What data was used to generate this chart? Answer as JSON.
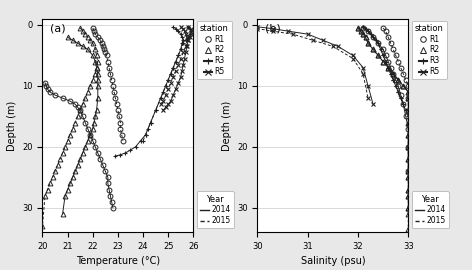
{
  "title_a": "(a)",
  "title_b": "(b)",
  "xlabel_a": "Temperature (°C)",
  "xlabel_b": "Salinity (psu)",
  "ylabel": "Depth (m)",
  "xlim_a": [
    20,
    26
  ],
  "xlim_b": [
    30,
    33
  ],
  "ylim": [
    34,
    -1
  ],
  "xticks_a": [
    20,
    21,
    22,
    23,
    24,
    25,
    26
  ],
  "xticks_b": [
    30,
    31,
    32,
    33
  ],
  "yticks": [
    0,
    10,
    20,
    30
  ],
  "background_color": "#e8e8e8",
  "panel_color": "#ffffff",
  "temp_R1_2014": {
    "x": [
      20.1,
      20.15,
      20.2,
      20.3,
      20.5,
      20.8,
      21.1,
      21.3,
      21.4,
      21.5,
      21.6,
      21.7,
      21.8,
      21.9,
      22.0,
      22.1,
      22.2,
      22.3,
      22.4,
      22.5,
      22.6,
      22.6,
      22.65,
      22.7,
      22.75,
      22.8
    ],
    "y": [
      9.5,
      10.0,
      10.5,
      11.0,
      11.5,
      12.0,
      12.5,
      13.0,
      13.5,
      14.0,
      15.0,
      16.0,
      17.0,
      18.0,
      19.0,
      20.0,
      21.0,
      22.0,
      23.0,
      24.0,
      25.0,
      26.0,
      27.0,
      28.0,
      29.0,
      30.0
    ]
  },
  "temp_R1_2015": {
    "x": [
      22.0,
      22.05,
      22.1,
      22.2,
      22.3,
      22.35,
      22.4,
      22.45,
      22.5,
      22.55,
      22.6,
      22.65,
      22.7,
      22.75,
      22.8,
      22.85,
      22.9,
      22.95,
      23.0,
      23.05,
      23.1,
      23.1,
      23.15,
      23.2
    ],
    "y": [
      0.5,
      1.0,
      1.5,
      2.0,
      2.5,
      3.0,
      3.5,
      4.0,
      4.5,
      5.0,
      6.0,
      7.0,
      8.0,
      9.0,
      10.0,
      11.0,
      12.0,
      13.0,
      14.0,
      15.0,
      16.0,
      17.0,
      18.0,
      19.0
    ]
  },
  "temp_R2_2014": {
    "x": [
      21.0,
      21.2,
      21.4,
      21.6,
      21.8,
      22.0,
      22.1,
      22.15,
      22.2,
      22.2,
      22.2,
      22.2,
      22.15,
      22.1,
      22.05,
      22.0,
      21.9,
      21.8,
      21.7,
      21.6,
      21.5,
      21.4,
      21.3,
      21.2,
      21.1,
      21.0,
      20.9,
      20.8
    ],
    "y": [
      2.0,
      2.5,
      3.0,
      3.5,
      4.0,
      5.0,
      6.0,
      7.0,
      8.0,
      9.0,
      10.0,
      12.0,
      14.0,
      15.0,
      16.0,
      17.0,
      18.0,
      19.0,
      20.0,
      21.0,
      22.0,
      23.0,
      24.0,
      25.0,
      26.0,
      27.0,
      28.0,
      31.0
    ]
  },
  "temp_R2_2015": {
    "x": [
      21.5,
      21.6,
      21.7,
      21.8,
      21.9,
      22.0,
      22.1,
      22.15,
      22.2,
      22.15,
      22.1,
      22.0,
      21.9,
      21.8,
      21.7,
      21.6,
      21.5,
      21.4,
      21.3,
      21.2,
      21.1,
      21.0,
      20.9,
      20.8,
      20.7,
      20.6,
      20.5,
      20.4,
      20.3,
      20.2,
      20.1,
      20.0
    ],
    "y": [
      0.5,
      1.0,
      1.5,
      2.0,
      2.5,
      3.0,
      4.0,
      5.0,
      6.0,
      7.0,
      8.0,
      9.0,
      10.0,
      11.0,
      12.0,
      13.0,
      14.0,
      15.0,
      16.0,
      17.0,
      18.0,
      19.0,
      20.0,
      21.0,
      22.0,
      23.0,
      24.0,
      25.0,
      26.0,
      27.0,
      28.0,
      33.0
    ]
  },
  "temp_R3_2014": {
    "x": [
      25.2,
      25.3,
      25.4,
      25.5,
      25.55,
      25.6,
      25.55,
      25.5,
      25.4,
      25.3,
      25.2,
      25.1,
      25.0,
      24.9,
      24.8,
      24.7,
      24.5,
      24.3,
      24.1,
      23.9,
      23.7,
      23.5,
      23.3,
      23.1,
      22.9
    ],
    "y": [
      0.3,
      0.6,
      1.0,
      1.5,
      2.0,
      2.5,
      3.0,
      4.0,
      5.0,
      6.0,
      7.0,
      8.0,
      9.0,
      10.0,
      11.0,
      12.0,
      14.0,
      16.0,
      18.0,
      19.0,
      20.0,
      20.5,
      21.0,
      21.3,
      21.5
    ]
  },
  "temp_R3_2015": {
    "x": [
      25.8,
      25.85,
      25.9,
      25.85,
      25.8,
      25.7,
      25.6,
      25.5,
      25.4,
      25.3,
      25.2,
      25.1,
      25.0,
      24.9,
      24.7,
      24.5,
      24.3,
      24.2,
      24.1,
      24.0
    ],
    "y": [
      0.3,
      0.6,
      1.0,
      1.5,
      2.0,
      2.5,
      3.0,
      4.0,
      5.0,
      6.0,
      7.0,
      8.0,
      9.0,
      10.0,
      12.0,
      14.0,
      16.0,
      17.0,
      18.0,
      19.0
    ]
  },
  "temp_R5_2014": {
    "x": [
      25.5,
      25.6,
      25.65,
      25.7,
      25.75,
      25.8,
      25.75,
      25.7,
      25.65,
      25.6,
      25.55,
      25.5,
      25.4,
      25.3,
      25.2,
      25.1,
      25.0,
      24.9,
      24.8
    ],
    "y": [
      0.3,
      0.6,
      1.0,
      1.5,
      2.0,
      2.5,
      3.5,
      4.5,
      5.5,
      6.5,
      7.5,
      8.5,
      9.5,
      10.5,
      11.5,
      12.5,
      13.0,
      13.5,
      14.0
    ]
  },
  "temp_R5_2015": {
    "x": [
      25.8,
      25.9,
      25.95,
      25.9,
      25.85,
      25.8,
      25.7,
      25.6,
      25.5,
      25.4,
      25.3,
      25.2,
      25.1,
      25.0,
      24.9,
      24.8,
      24.7
    ],
    "y": [
      0.3,
      0.6,
      1.0,
      1.5,
      2.0,
      2.5,
      3.5,
      4.5,
      5.5,
      6.5,
      7.5,
      8.5,
      9.5,
      10.5,
      11.5,
      12.5,
      13.0
    ]
  },
  "sal_R1_2014": {
    "x": [
      32.1,
      32.2,
      32.3,
      32.4,
      32.5,
      32.55,
      32.6,
      32.65,
      32.7,
      32.75,
      32.8,
      32.85,
      32.9,
      32.95,
      33.0,
      33.0,
      33.0
    ],
    "y": [
      0.5,
      1.0,
      2.0,
      3.0,
      4.0,
      5.0,
      6.0,
      7.0,
      8.0,
      9.0,
      10.0,
      11.5,
      13.0,
      15.0,
      17.0,
      20.0,
      24.0
    ]
  },
  "sal_R1_2015": {
    "x": [
      32.5,
      32.55,
      32.6,
      32.65,
      32.7,
      32.75,
      32.8,
      32.85,
      32.9,
      32.95,
      33.0,
      33.0
    ],
    "y": [
      0.5,
      1.0,
      2.0,
      3.0,
      4.0,
      5.0,
      6.0,
      7.0,
      8.0,
      9.0,
      10.0,
      12.0
    ]
  },
  "sal_R2_2014": {
    "x": [
      32.0,
      32.05,
      32.1,
      32.15,
      32.2,
      32.3,
      32.4,
      32.5,
      32.6,
      32.7,
      32.8,
      32.9,
      33.0,
      33.0,
      33.0,
      33.0,
      33.0,
      33.0,
      33.0,
      33.0,
      33.0,
      33.0,
      33.0,
      33.0,
      33.0
    ],
    "y": [
      0.5,
      1.0,
      1.5,
      2.0,
      3.0,
      4.0,
      5.0,
      6.0,
      7.0,
      8.0,
      9.0,
      10.0,
      11.0,
      12.0,
      14.0,
      16.0,
      18.0,
      20.0,
      22.0,
      24.0,
      25.0,
      27.0,
      28.0,
      30.0,
      31.0
    ]
  },
  "sal_R2_2015": {
    "x": [
      32.0,
      32.05,
      32.1,
      32.15,
      32.2,
      32.3,
      32.4,
      32.5,
      32.6,
      32.7,
      32.8,
      32.9,
      33.0,
      33.0,
      33.0,
      33.0,
      33.0,
      33.0,
      33.0,
      33.0,
      33.0,
      33.0,
      33.0,
      33.0,
      33.0
    ],
    "y": [
      0.5,
      1.0,
      1.5,
      2.0,
      3.0,
      4.0,
      5.0,
      6.0,
      7.0,
      8.0,
      9.0,
      10.0,
      11.0,
      12.0,
      14.0,
      16.0,
      18.0,
      20.0,
      22.0,
      24.0,
      25.0,
      27.0,
      28.0,
      30.0,
      33.5
    ]
  },
  "sal_R3_2014": {
    "x": [
      32.1,
      32.15,
      32.2,
      32.25,
      32.3,
      32.35,
      32.4,
      32.45,
      32.5,
      32.55,
      32.6,
      32.65,
      32.7,
      32.75,
      32.8,
      32.85,
      32.9,
      32.95,
      33.0
    ],
    "y": [
      0.3,
      0.6,
      1.0,
      1.5,
      2.0,
      2.5,
      3.0,
      4.0,
      5.0,
      6.0,
      7.0,
      8.0,
      9.0,
      10.0,
      11.0,
      12.0,
      13.0,
      14.0,
      15.0
    ]
  },
  "sal_R3_2015": {
    "x": [
      32.1,
      32.15,
      32.2,
      32.25,
      32.3,
      32.35,
      32.4,
      32.45,
      32.5,
      32.55,
      32.6,
      32.65,
      32.7,
      32.75,
      32.8,
      32.85,
      32.9
    ],
    "y": [
      0.3,
      0.6,
      1.0,
      1.5,
      2.0,
      2.5,
      3.0,
      4.0,
      5.0,
      6.0,
      7.0,
      8.0,
      9.0,
      10.0,
      11.0,
      12.0,
      13.0
    ]
  },
  "sal_R5_2014": {
    "x": [
      30.0,
      30.3,
      30.6,
      31.0,
      31.3,
      31.6,
      31.9,
      32.1,
      32.2,
      32.3
    ],
    "y": [
      0.3,
      0.6,
      1.0,
      1.5,
      2.5,
      3.5,
      5.0,
      7.0,
      10.0,
      13.0
    ]
  },
  "sal_R5_2015": {
    "x": [
      29.8,
      30.0,
      30.3,
      30.7,
      31.1,
      31.5,
      31.9,
      32.1,
      32.2
    ],
    "y": [
      0.3,
      0.6,
      1.0,
      1.5,
      2.5,
      3.5,
      5.5,
      8.0,
      12.0
    ]
  },
  "line_color": "#222222",
  "marker_size": 3.5,
  "linewidth": 0.7
}
